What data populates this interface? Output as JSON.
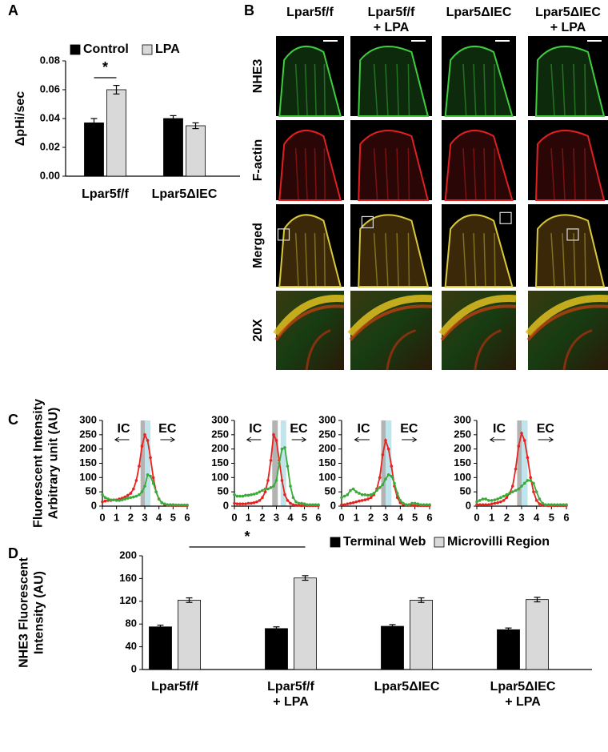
{
  "panel_labels": [
    "A",
    "B",
    "C",
    "D"
  ],
  "image_panel": {
    "columns": [
      "Lpar5f/f",
      "Lpar5f/f\n+ LPA",
      "Lpar5ΔIEC",
      "Lpar5ΔIEC\n+ LPA"
    ],
    "rows": [
      "NHE3",
      "F-actin",
      "Merged",
      "20X"
    ],
    "row_label_colors": [
      "#22b822",
      "#e52222",
      "#000000",
      "#000000"
    ]
  },
  "chart_data": [
    {
      "type": "bar",
      "ylabel": "ΔpHi/sec",
      "categories": [
        "Lpar5f/f",
        "Lpar5ΔIEC"
      ],
      "series": [
        {
          "name": "Control",
          "color": "#000000",
          "values": [
            0.037,
            0.04
          ],
          "errors": [
            0.003,
            0.002
          ]
        },
        {
          "name": "LPA",
          "color": "#d9d9d9",
          "values": [
            0.06,
            0.035
          ],
          "errors": [
            0.003,
            0.002
          ]
        }
      ],
      "ylim": [
        0,
        0.08
      ],
      "yticks": [
        {
          "value": 0,
          "label": "0.00"
        },
        {
          "value": 0.02,
          "label": "0.02"
        },
        {
          "value": 0.04,
          "label": "0.04"
        },
        {
          "value": 0.06,
          "label": "0.06"
        },
        {
          "value": 0.08,
          "label": "0.08"
        }
      ],
      "significance": "*"
    },
    {
      "type": "line",
      "ylabel": "Fluorescent Intensity\nArbitrary unit (AU)",
      "annotations": [
        "IC",
        "EC"
      ],
      "x": [
        0,
        0.2,
        0.4,
        0.6,
        0.8,
        1,
        1.2,
        1.4,
        1.6,
        1.8,
        2,
        2.2,
        2.4,
        2.6,
        2.8,
        3,
        3.2,
        3.4,
        3.6,
        3.8,
        4,
        4.2,
        4.4,
        4.6,
        4.8,
        5,
        5.2,
        5.4,
        5.6,
        5.8,
        6
      ],
      "series": [
        {
          "color": "#e8221f",
          "values": [
            15,
            18,
            20,
            20,
            22,
            22,
            25,
            28,
            32,
            38,
            45,
            60,
            90,
            140,
            210,
            250,
            230,
            170,
            100,
            50,
            25,
            12,
            6,
            4,
            3,
            3,
            2,
            2,
            2,
            2,
            2
          ]
        },
        {
          "color": "#3aaa3a",
          "values": [
            40,
            30,
            25,
            22,
            22,
            20,
            20,
            22,
            25,
            28,
            30,
            32,
            35,
            40,
            50,
            70,
            110,
            105,
            80,
            50,
            25,
            12,
            8,
            5,
            5,
            5,
            4,
            4,
            4,
            4,
            4
          ]
        }
      ],
      "shaded_regions": [
        {
          "x": [
            2.7,
            3.0
          ],
          "color": "#b3b3b3"
        },
        {
          "x": [
            3.0,
            3.4
          ],
          "color": "#bfe4ec"
        }
      ],
      "xlim": [
        0,
        6
      ],
      "xticks": [
        0,
        1,
        2,
        3,
        4,
        5,
        6
      ],
      "ylim": [
        0,
        300
      ],
      "yticks": [
        0,
        50,
        100,
        150,
        200,
        250,
        300
      ]
    },
    {
      "type": "line",
      "annotations": [
        "IC",
        "EC"
      ],
      "x": [
        0,
        0.2,
        0.4,
        0.6,
        0.8,
        1,
        1.2,
        1.4,
        1.6,
        1.8,
        2,
        2.2,
        2.4,
        2.6,
        2.8,
        3,
        3.2,
        3.4,
        3.6,
        3.8,
        4,
        4.2,
        4.4,
        4.6,
        4.8,
        5,
        5.2,
        5.4,
        5.6,
        5.8,
        6
      ],
      "series": [
        {
          "color": "#e8221f",
          "values": [
            10,
            8,
            8,
            8,
            8,
            10,
            10,
            12,
            15,
            20,
            30,
            50,
            90,
            160,
            250,
            230,
            160,
            90,
            40,
            20,
            10,
            5,
            3,
            3,
            2,
            2,
            2,
            2,
            2,
            2,
            2
          ]
        },
        {
          "color": "#3aaa3a",
          "values": [
            40,
            35,
            35,
            35,
            38,
            38,
            40,
            42,
            45,
            50,
            55,
            60,
            60,
            65,
            70,
            90,
            150,
            200,
            205,
            140,
            70,
            30,
            15,
            10,
            10,
            8,
            5,
            5,
            5,
            5,
            5
          ]
        }
      ],
      "shaded_regions": [
        {
          "x": [
            2.7,
            3.1
          ],
          "color": "#b3b3b3"
        },
        {
          "x": [
            3.3,
            3.7
          ],
          "color": "#bfe4ec"
        }
      ],
      "xlim": [
        0,
        6
      ],
      "xticks": [
        0,
        1,
        2,
        3,
        4,
        5,
        6
      ],
      "ylim": [
        0,
        300
      ],
      "yticks": [
        0,
        50,
        100,
        150,
        200,
        250,
        300
      ]
    },
    {
      "type": "line",
      "annotations": [
        "IC",
        "EC"
      ],
      "x": [
        0,
        0.2,
        0.4,
        0.6,
        0.8,
        1,
        1.2,
        1.4,
        1.6,
        1.8,
        2,
        2.2,
        2.4,
        2.6,
        2.8,
        3,
        3.2,
        3.4,
        3.6,
        3.8,
        4,
        4.2,
        4.4,
        4.6,
        4.8,
        5,
        5.2,
        5.4,
        5.6,
        5.8,
        6
      ],
      "series": [
        {
          "color": "#e8221f",
          "values": [
            5,
            5,
            8,
            10,
            12,
            15,
            18,
            20,
            22,
            25,
            30,
            40,
            60,
            100,
            180,
            230,
            200,
            140,
            70,
            30,
            12,
            6,
            4,
            3,
            3,
            2,
            2,
            2,
            2,
            2,
            2
          ]
        },
        {
          "color": "#3aaa3a",
          "values": [
            30,
            35,
            40,
            55,
            60,
            50,
            45,
            40,
            40,
            38,
            40,
            45,
            55,
            65,
            75,
            95,
            110,
            105,
            80,
            45,
            20,
            10,
            5,
            5,
            10,
            10,
            8,
            5,
            5,
            5,
            5
          ]
        }
      ],
      "shaded_regions": [
        {
          "x": [
            2.7,
            3.0
          ],
          "color": "#b3b3b3"
        },
        {
          "x": [
            3.0,
            3.4
          ],
          "color": "#bfe4ec"
        }
      ],
      "xlim": [
        0,
        6
      ],
      "xticks": [
        0,
        1,
        2,
        3,
        4,
        5,
        6
      ],
      "ylim": [
        0,
        300
      ],
      "yticks": [
        0,
        50,
        100,
        150,
        200,
        250,
        300
      ]
    },
    {
      "type": "line",
      "annotations": [
        "IC",
        "EC"
      ],
      "x": [
        0,
        0.2,
        0.4,
        0.6,
        0.8,
        1,
        1.2,
        1.4,
        1.6,
        1.8,
        2,
        2.2,
        2.4,
        2.6,
        2.8,
        3,
        3.2,
        3.4,
        3.6,
        3.8,
        4,
        4.2,
        4.4,
        4.6,
        4.8,
        5,
        5.2,
        5.4,
        5.6,
        5.8,
        6
      ],
      "series": [
        {
          "color": "#e8221f",
          "values": [
            5,
            5,
            5,
            5,
            5,
            8,
            10,
            12,
            15,
            20,
            30,
            45,
            70,
            130,
            210,
            255,
            230,
            170,
            100,
            50,
            20,
            8,
            4,
            3,
            2,
            2,
            2,
            2,
            2,
            2,
            2
          ]
        },
        {
          "color": "#3aaa3a",
          "values": [
            15,
            20,
            25,
            25,
            20,
            20,
            22,
            25,
            30,
            35,
            40,
            45,
            50,
            55,
            60,
            70,
            80,
            90,
            90,
            80,
            50,
            25,
            10,
            5,
            5,
            5,
            5,
            5,
            5,
            5,
            5
          ]
        }
      ],
      "shaded_regions": [
        {
          "x": [
            2.7,
            3.0
          ],
          "color": "#b3b3b3"
        },
        {
          "x": [
            3.0,
            3.4
          ],
          "color": "#bfe4ec"
        }
      ],
      "xlim": [
        0,
        6
      ],
      "xticks": [
        0,
        1,
        2,
        3,
        4,
        5,
        6
      ],
      "ylim": [
        0,
        300
      ],
      "yticks": [
        0,
        50,
        100,
        150,
        200,
        250,
        300
      ]
    },
    {
      "type": "bar",
      "ylabel": "NHE3 Fluorescent\nIntensity (AU)",
      "categories": [
        "Lpar5f/f",
        "Lpar5f/f\n+ LPA",
        "Lpar5ΔIEC",
        "Lpar5ΔIEC\n+ LPA"
      ],
      "series": [
        {
          "name": "Terminal Web",
          "color": "#000000",
          "values": [
            75,
            72,
            76,
            70
          ],
          "errors": [
            3,
            3,
            3,
            3
          ]
        },
        {
          "name": "Microvilli Region",
          "color": "#d9d9d9",
          "values": [
            122,
            161,
            122,
            123
          ],
          "errors": [
            4,
            4,
            4,
            4
          ]
        }
      ],
      "ylim": [
        0,
        200
      ],
      "yticks": [
        0,
        40,
        80,
        120,
        160,
        200
      ],
      "significance": "*"
    }
  ]
}
